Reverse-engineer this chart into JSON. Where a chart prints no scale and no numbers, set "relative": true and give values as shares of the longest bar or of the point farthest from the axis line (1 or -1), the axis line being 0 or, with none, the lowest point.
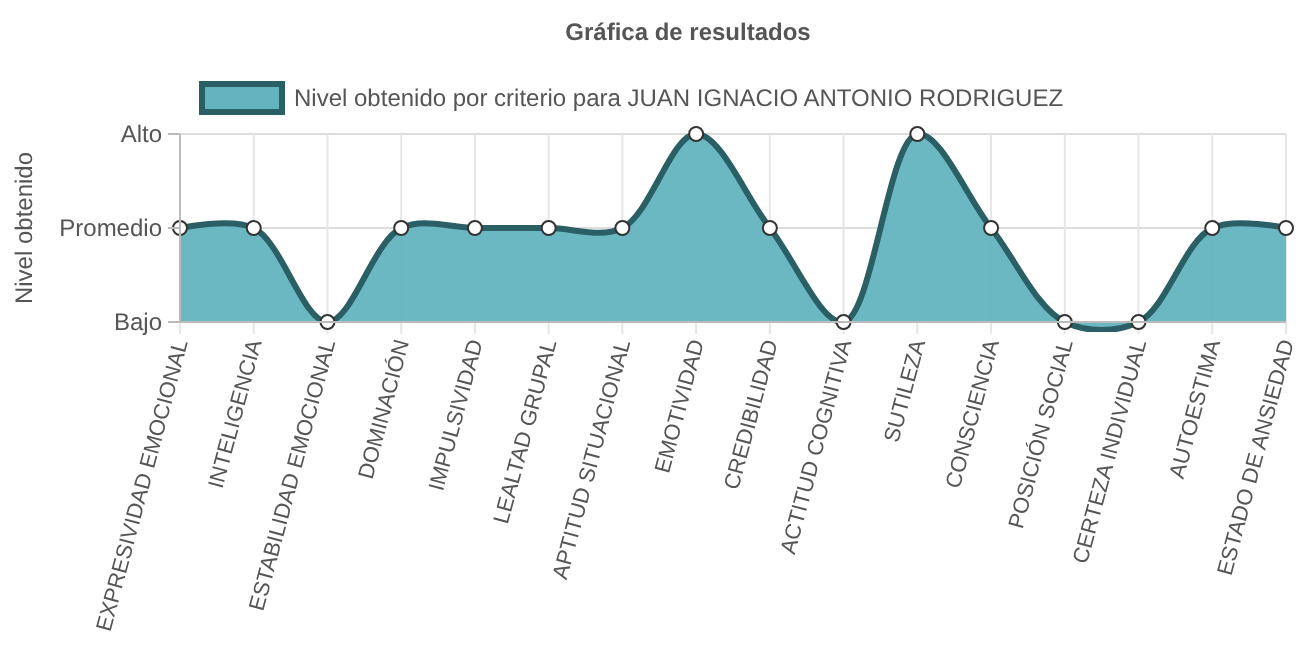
{
  "chart_data": {
    "type": "area",
    "title": "Gráfica de resultados",
    "ylabel": "Nivel obtenido",
    "categories": [
      "EXPRESIVIDAD EMOCIONAL",
      "INTELIGENCIA",
      "ESTABILIDAD EMOCIONAL",
      "DOMINACIÓN",
      "IMPULSIVIDAD",
      "LEALTAD GRUPAL",
      "APTITUD SITUACIONAL",
      "EMOTIVIDAD",
      "CREDIBILIDAD",
      "ACTITUD COGNITIVA",
      "SUTILEZA",
      "CONSCIENCIA",
      "POSICIÓN SOCIAL",
      "CERTEZA INDIVIDUAL",
      "AUTOESTIMA",
      "ESTADO DE ANSIEDAD"
    ],
    "series": [
      {
        "name": "Nivel obtenido por criterio para JUAN IGNACIO ANTONIO RODRIGUEZ",
        "color": "#2a5f66",
        "values": [
          0.5,
          0.5,
          0,
          0.5,
          0.5,
          0.5,
          0.5,
          1,
          0.5,
          0,
          1,
          0.5,
          0,
          0,
          0.5,
          0.5
        ]
      }
    ],
    "relative": true,
    "annotations": [
      "Bajo",
      "Promedio",
      "Alto"
    ],
    "grid": true,
    "legend": "top",
    "marker": "circle"
  }
}
